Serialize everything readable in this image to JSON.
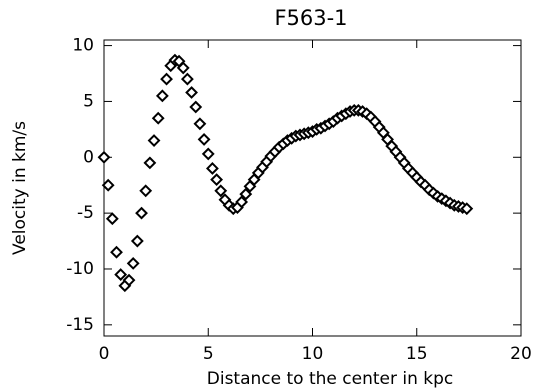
{
  "chart_data": {
    "type": "scatter",
    "title": "F563-1",
    "x_label": "Distance to the center in kpc",
    "y_label": "Velocity in km/s",
    "marker": "diamond",
    "color": "#000000",
    "x": [
      0,
      0.2,
      0.4,
      0.6,
      0.8,
      1.0,
      1.2,
      1.4,
      1.6,
      1.8,
      2.0,
      2.2,
      2.4,
      2.6,
      2.8,
      3.0,
      3.2,
      3.4,
      3.6,
      3.8,
      4.0,
      4.2,
      4.4,
      4.6,
      4.8,
      5.0,
      5.2,
      5.4,
      5.6,
      5.8,
      6.0,
      6.2,
      6.4,
      6.6,
      6.8,
      7.0,
      7.2,
      7.4,
      7.6,
      7.8,
      8.0,
      8.2,
      8.4,
      8.6,
      8.8,
      9.0,
      9.2,
      9.4,
      9.6,
      9.8,
      10.0,
      10.2,
      10.4,
      10.6,
      10.8,
      11.0,
      11.2,
      11.4,
      11.6,
      11.8,
      12.0,
      12.2,
      12.4,
      12.6,
      12.8,
      13.0,
      13.2,
      13.4,
      13.6,
      13.8,
      14.0,
      14.2,
      14.4,
      14.6,
      14.8,
      15.0,
      15.2,
      15.4,
      15.6,
      15.8,
      16.0,
      16.2,
      16.4,
      16.6,
      16.8,
      17.0,
      17.2,
      17.4
    ],
    "values": [
      0,
      -2.5,
      -5.5,
      -8.5,
      -10.5,
      -11.5,
      -11,
      -9.5,
      -7.5,
      -5,
      -3,
      -0.5,
      1.5,
      3.5,
      5.5,
      7,
      8.2,
      8.7,
      8.6,
      8,
      7,
      5.8,
      4.5,
      3,
      1.6,
      0.3,
      -1,
      -2,
      -3,
      -3.8,
      -4.3,
      -4.6,
      -4.5,
      -4,
      -3.3,
      -2.6,
      -2,
      -1.4,
      -0.9,
      -0.4,
      0.1,
      0.5,
      0.9,
      1.2,
      1.5,
      1.7,
      1.9,
      2.0,
      2.1,
      2.2,
      2.3,
      2.5,
      2.6,
      2.8,
      3.0,
      3.2,
      3.5,
      3.7,
      3.9,
      4.1,
      4.2,
      4.2,
      4.1,
      3.9,
      3.6,
      3.2,
      2.7,
      2.2,
      1.6,
      1.0,
      0.5,
      0,
      -0.5,
      -1.0,
      -1.4,
      -1.8,
      -2.2,
      -2.5,
      -2.9,
      -3.2,
      -3.5,
      -3.7,
      -3.9,
      -4.1,
      -4.3,
      -4.4,
      -4.5,
      -4.6
    ],
    "xlim": [
      0,
      20
    ],
    "xticks": [
      0,
      5,
      10,
      15,
      20
    ],
    "ylim": [
      -16,
      10.5
    ],
    "yticks": [
      -15,
      -10,
      -5,
      0,
      5,
      10
    ],
    "grid": false
  }
}
